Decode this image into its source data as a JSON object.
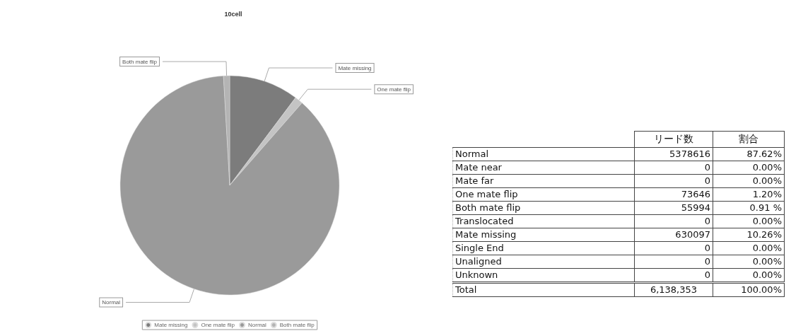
{
  "chart_data": [
    {
      "type": "pie",
      "title": "10cell",
      "categories": [
        "Mate missing",
        "One mate flip",
        "Normal",
        "Both mate flip"
      ],
      "values": [
        10.26,
        1.2,
        87.62,
        0.91
      ],
      "colors": [
        "#7c7c7c",
        "#c4c4c4",
        "#9a9a9a",
        "#b4b4b4"
      ],
      "legend": "bottom"
    },
    {
      "type": "other",
      "categories": [
        "Normal",
        "Mate near",
        "Mate far",
        "One mate flip",
        "Both mate flip",
        "Translocated",
        "Mate missing",
        "Single End",
        "Unaligned",
        "Unknown"
      ],
      "series": [
        {
          "name": "リード数",
          "values": [
            5378616,
            0,
            0,
            73646,
            55994,
            0,
            630097,
            0,
            0,
            0
          ]
        },
        {
          "name": "割合",
          "values": [
            87.62,
            0,
            0,
            1.2,
            0.91,
            0,
            10.26,
            0,
            0,
            0
          ],
          "value_labels": [
            "87.62%",
            "0.00%",
            "0.00%",
            "1.20%",
            "0.91 %",
            "0.00%",
            "10.26%",
            "0.00%",
            "0.00%",
            "0.00%"
          ]
        }
      ],
      "data_labels": true,
      "annotations": [
        "Total"
      ],
      "totals": [
        "6,138,353",
        "100.00%"
      ]
    }
  ]
}
